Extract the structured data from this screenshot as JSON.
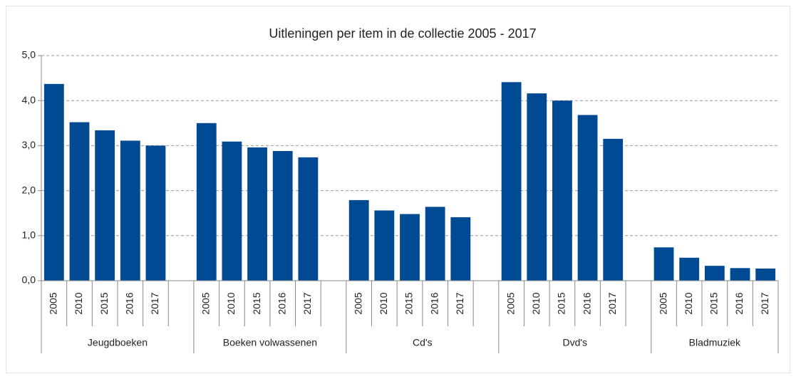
{
  "chart_data": {
    "type": "bar",
    "title": "Uitleningen per item in de collectie 2005 - 2017",
    "color": "#004a93",
    "grid": true,
    "ylim": [
      0,
      5
    ],
    "yticks": [
      {
        "value": 0,
        "label": "0,0"
      },
      {
        "value": 1,
        "label": "1,0"
      },
      {
        "value": 2,
        "label": "2,0"
      },
      {
        "value": 3,
        "label": "3,0"
      },
      {
        "value": 4,
        "label": "4,0"
      },
      {
        "value": 5,
        "label": "5,0"
      }
    ],
    "groups": [
      {
        "name": "Jeugdboeken",
        "categories": [
          "2005",
          "2010",
          "2015",
          "2016",
          "2017"
        ],
        "values": [
          4.37,
          3.52,
          3.34,
          3.11,
          3.0
        ]
      },
      {
        "name": "Boeken volwassenen",
        "categories": [
          "2005",
          "2010",
          "2015",
          "2016",
          "2017"
        ],
        "values": [
          3.5,
          3.09,
          2.96,
          2.88,
          2.74
        ]
      },
      {
        "name": "Cd's",
        "categories": [
          "2005",
          "2010",
          "2015",
          "2016",
          "2017"
        ],
        "values": [
          1.79,
          1.56,
          1.48,
          1.64,
          1.41
        ]
      },
      {
        "name": "Dvd's",
        "categories": [
          "2005",
          "2010",
          "2015",
          "2016",
          "2017"
        ],
        "values": [
          4.41,
          4.16,
          4.0,
          3.68,
          3.15
        ]
      },
      {
        "name": "Bladmuziek",
        "categories": [
          "2005",
          "2010",
          "2015",
          "2016",
          "2017"
        ],
        "values": [
          0.74,
          0.51,
          0.33,
          0.28,
          0.27
        ]
      }
    ]
  }
}
